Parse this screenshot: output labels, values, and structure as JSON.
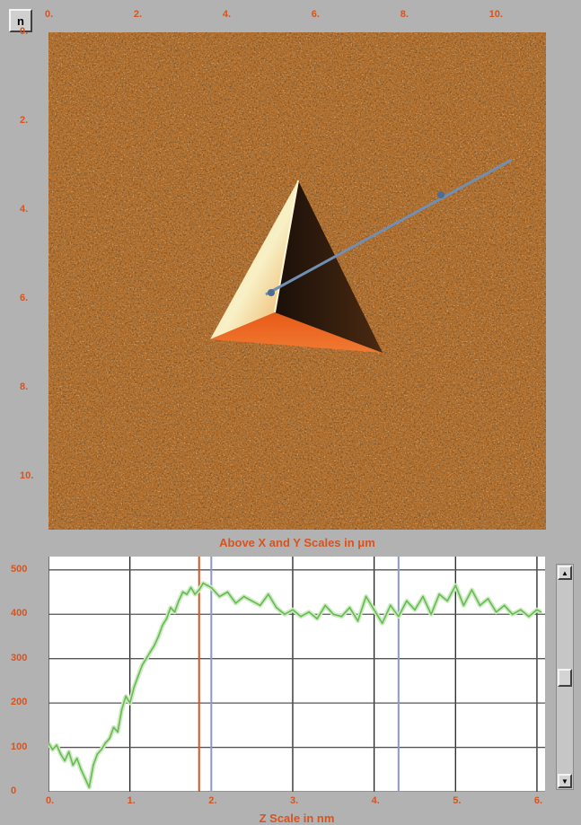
{
  "toolbar": {
    "n_button_label": "n"
  },
  "image_panel": {
    "x_ticks": [
      "0.",
      "2.",
      "4.",
      "6.",
      "8.",
      "10."
    ],
    "y_ticks": [
      "0.",
      "2.",
      "4.",
      "6.",
      "8.",
      "10."
    ],
    "caption": "Above X and Y Scales in μm",
    "line_color": "#6f8fb4",
    "accent_color": "#d8531d"
  },
  "chart_data": {
    "type": "line",
    "xlabel": "Z Scale in nm",
    "xlim": [
      0,
      6.1
    ],
    "ylim": [
      0,
      530
    ],
    "x_ticks": [
      "0.",
      "1.",
      "2.",
      "3.",
      "4.",
      "5.",
      "6."
    ],
    "y_ticks": [
      "0",
      "100",
      "200",
      "300",
      "400",
      "500"
    ],
    "grid": true,
    "series": [
      {
        "color": "#66bb55",
        "x": [
          0.0,
          0.05,
          0.1,
          0.15,
          0.2,
          0.25,
          0.3,
          0.35,
          0.4,
          0.45,
          0.5,
          0.55,
          0.6,
          0.65,
          0.7,
          0.75,
          0.8,
          0.85,
          0.9,
          0.95,
          1.0,
          1.05,
          1.1,
          1.15,
          1.2,
          1.25,
          1.3,
          1.35,
          1.4,
          1.45,
          1.5,
          1.55,
          1.6,
          1.65,
          1.7,
          1.75,
          1.8,
          1.85,
          1.9,
          1.95,
          2.0,
          2.1,
          2.2,
          2.3,
          2.4,
          2.5,
          2.6,
          2.7,
          2.8,
          2.9,
          3.0,
          3.1,
          3.2,
          3.3,
          3.4,
          3.5,
          3.6,
          3.7,
          3.8,
          3.9,
          4.0,
          4.1,
          4.2,
          4.3,
          4.4,
          4.5,
          4.6,
          4.7,
          4.8,
          4.9,
          5.0,
          5.1,
          5.2,
          5.3,
          5.4,
          5.5,
          5.6,
          5.7,
          5.8,
          5.9,
          6.0,
          6.05
        ],
        "y": [
          110,
          95,
          105,
          85,
          70,
          90,
          60,
          75,
          50,
          30,
          10,
          60,
          85,
          95,
          110,
          120,
          145,
          135,
          185,
          215,
          200,
          235,
          260,
          285,
          300,
          315,
          330,
          350,
          375,
          390,
          415,
          405,
          430,
          450,
          445,
          460,
          445,
          455,
          470,
          465,
          460,
          440,
          450,
          425,
          440,
          430,
          420,
          445,
          415,
          400,
          410,
          395,
          405,
          390,
          420,
          400,
          395,
          415,
          385,
          440,
          410,
          380,
          420,
          395,
          430,
          410,
          440,
          400,
          445,
          430,
          465,
          420,
          455,
          420,
          435,
          405,
          420,
          400,
          410,
          395,
          410,
          405
        ]
      }
    ],
    "vertical_markers": [
      {
        "x": 1.85,
        "color": "#d8531d"
      },
      {
        "x": 2.0,
        "color": "#8899cc"
      },
      {
        "x": 4.3,
        "color": "#8899cc"
      }
    ]
  }
}
